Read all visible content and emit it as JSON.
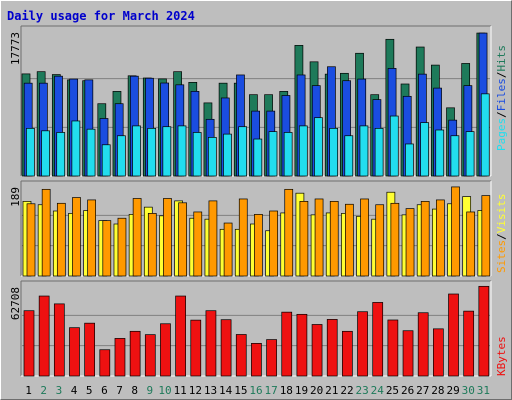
{
  "colors": {
    "background": "#bebebe",
    "title": "#0000cc",
    "hits": "#1e7a5a",
    "files": "#1a4de0",
    "pages": "#22ddee",
    "visits": "#ffff33",
    "sites": "#ff9900",
    "kbytes": "#ee1111",
    "weekday_label": "#000000",
    "weekend_label": "#1e7a5a"
  },
  "chart_data": [
    {
      "type": "bar",
      "title": "Daily usage for March 2024",
      "panel": "hits-files-pages",
      "ymax_label": "17773",
      "ylim": [
        0,
        17773
      ],
      "categories": [
        "1",
        "2",
        "3",
        "4",
        "5",
        "6",
        "7",
        "8",
        "9",
        "10",
        "11",
        "12",
        "13",
        "14",
        "15",
        "16",
        "17",
        "18",
        "19",
        "20",
        "21",
        "22",
        "23",
        "24",
        "25",
        "26",
        "27",
        "28",
        "29",
        "30",
        "31"
      ],
      "weekend_days": [
        "2",
        "3",
        "9",
        "10",
        "16",
        "17",
        "23",
        "24",
        "30",
        "31"
      ],
      "series": [
        {
          "name": "Hits",
          "values": [
            12430,
            12700,
            12350,
            11700,
            11600,
            8800,
            10300,
            12200,
            11930,
            11820,
            12700,
            11400,
            8900,
            11300,
            11300,
            9900,
            9900,
            10300,
            15900,
            13900,
            12400,
            12500,
            14940,
            9900,
            16640,
            11200,
            15700,
            13500,
            8300,
            13700,
            17400
          ]
        },
        {
          "name": "Files",
          "values": [
            11300,
            11300,
            12150,
            11800,
            11700,
            7000,
            8800,
            12150,
            11900,
            11320,
            11100,
            10300,
            6900,
            9500,
            12300,
            7900,
            7900,
            9800,
            12300,
            11000,
            13300,
            11600,
            11800,
            9300,
            13100,
            9700,
            12400,
            10700,
            6800,
            11000,
            17400
          ]
        },
        {
          "name": "Pages",
          "values": [
            5800,
            5500,
            5300,
            6700,
            5700,
            3800,
            4900,
            6100,
            5800,
            6000,
            6100,
            5300,
            4700,
            5100,
            6000,
            4500,
            5400,
            5300,
            6100,
            7100,
            5800,
            4900,
            6100,
            5800,
            7300,
            3900,
            6500,
            5600,
            4900,
            5400,
            10000
          ]
        }
      ]
    },
    {
      "type": "bar",
      "panel": "visits-sites",
      "ymax_label": "189",
      "ylim": [
        0,
        189
      ],
      "categories": [
        "1",
        "2",
        "3",
        "4",
        "5",
        "6",
        "7",
        "8",
        "9",
        "10",
        "11",
        "12",
        "13",
        "14",
        "15",
        "16",
        "17",
        "18",
        "19",
        "20",
        "21",
        "22",
        "23",
        "24",
        "25",
        "26",
        "27",
        "28",
        "29",
        "30",
        "31"
      ],
      "series": [
        {
          "name": "Visits",
          "values": [
            155,
            148,
            135,
            130,
            136,
            115,
            108,
            128,
            143,
            125,
            156,
            120,
            118,
            97,
            97,
            108,
            94,
            131,
            172,
            127,
            131,
            130,
            124,
            118,
            174,
            127,
            148,
            139,
            150,
            165,
            136
          ]
        },
        {
          "name": "Sites",
          "values": [
            150,
            180,
            151,
            163,
            158,
            115,
            120,
            161,
            130,
            161,
            152,
            133,
            156,
            110,
            160,
            128,
            135,
            180,
            155,
            160,
            155,
            149,
            160,
            148,
            151,
            140,
            155,
            158,
            185,
            133,
            167
          ]
        }
      ]
    },
    {
      "type": "bar",
      "panel": "kbytes",
      "ymax_label": "62708",
      "ylim": [
        0,
        62708
      ],
      "categories": [
        "1",
        "2",
        "3",
        "4",
        "5",
        "6",
        "7",
        "8",
        "9",
        "10",
        "11",
        "12",
        "13",
        "14",
        "15",
        "16",
        "17",
        "18",
        "19",
        "20",
        "21",
        "22",
        "23",
        "24",
        "25",
        "26",
        "27",
        "28",
        "29",
        "30",
        "31"
      ],
      "series": [
        {
          "name": "KBytes",
          "values": [
            45000,
            55100,
            49700,
            33300,
            36400,
            18100,
            25900,
            30800,
            28500,
            36000,
            55100,
            38500,
            45000,
            38800,
            28600,
            22500,
            25100,
            44000,
            42500,
            35500,
            39000,
            30800,
            44300,
            50700,
            38600,
            31200,
            43600,
            32500,
            56500,
            44700,
            61800
          ]
        }
      ]
    }
  ],
  "side_labels": {
    "pages": "Pages",
    "files": "Files",
    "hits": "Hits",
    "sites": "Sites",
    "visits": "Visits",
    "kbytes": "KBytes",
    "separator": "/"
  }
}
